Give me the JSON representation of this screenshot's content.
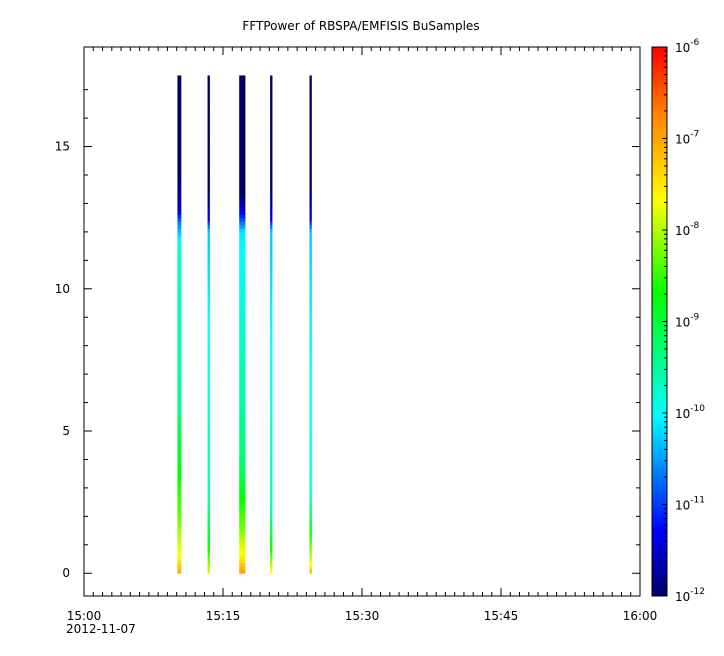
{
  "chart_data": {
    "type": "heatmap",
    "title": "FFTPower of RBSPA/EMFISIS  BuSamples",
    "xlabel": "",
    "ylabel": "",
    "x_axis": {
      "type": "time",
      "range": [
        "15:00",
        "16:00"
      ],
      "ticks": [
        "15:00",
        "15:15",
        "15:30",
        "15:45",
        "16:00"
      ],
      "first_tick_date": "2012-11-07",
      "minor_tick_minutes": 1
    },
    "y_axis": {
      "range": [
        -0.8,
        18.5
      ],
      "ticks": [
        "0",
        "5",
        "10",
        "15"
      ]
    },
    "colorbar": {
      "scale": "log",
      "range": [
        1e-12,
        1e-06
      ],
      "ticks": [
        {
          "base": "10",
          "exp": "-12"
        },
        {
          "base": "10",
          "exp": "-11"
        },
        {
          "base": "10",
          "exp": "-10"
        },
        {
          "base": "10",
          "exp": "-9"
        },
        {
          "base": "10",
          "exp": "-8"
        },
        {
          "base": "10",
          "exp": "-7"
        },
        {
          "base": "10",
          "exp": "-6"
        }
      ]
    },
    "strips": [
      {
        "time_start": "15:10:05",
        "time_end": "15:10:30",
        "freq_max": 17.5,
        "profile": [
          [
            0,
            -7.0
          ],
          [
            0.5,
            -7.6
          ],
          [
            2.0,
            -8.3
          ],
          [
            6.0,
            -9.4
          ],
          [
            11.5,
            -9.8
          ],
          [
            12.3,
            -10.6
          ],
          [
            12.8,
            -11.5
          ],
          [
            14.0,
            -12.0
          ],
          [
            17.5,
            -12.0
          ]
        ]
      },
      {
        "time_start": "15:13:20",
        "time_end": "15:13:35",
        "freq_max": 17.5,
        "profile": [
          [
            0,
            -7.8
          ],
          [
            0.8,
            -8.6
          ],
          [
            2.5,
            -9.5
          ],
          [
            12.0,
            -10.3
          ],
          [
            12.5,
            -11.4
          ],
          [
            13.5,
            -12.0
          ],
          [
            17.5,
            -12.0
          ]
        ]
      },
      {
        "time_start": "15:16:45",
        "time_end": "15:17:25",
        "freq_max": 17.5,
        "profile": [
          [
            0,
            -6.9
          ],
          [
            0.5,
            -7.5
          ],
          [
            1.5,
            -8.2
          ],
          [
            4.0,
            -9.3
          ],
          [
            12.0,
            -10.1
          ],
          [
            12.6,
            -11.2
          ],
          [
            13.3,
            -12.0
          ],
          [
            17.5,
            -12.0
          ]
        ]
      },
      {
        "time_start": "15:20:05",
        "time_end": "15:20:20",
        "freq_max": 17.5,
        "profile": [
          [
            0,
            -7.6
          ],
          [
            0.8,
            -8.6
          ],
          [
            2.2,
            -9.6
          ],
          [
            12.0,
            -10.3
          ],
          [
            12.5,
            -11.4
          ],
          [
            13.5,
            -12.0
          ],
          [
            17.5,
            -12.0
          ]
        ]
      },
      {
        "time_start": "15:24:20",
        "time_end": "15:24:35",
        "freq_max": 17.5,
        "profile": [
          [
            0,
            -7.0
          ],
          [
            0.4,
            -7.8
          ],
          [
            1.5,
            -8.8
          ],
          [
            3.0,
            -9.8
          ],
          [
            12.0,
            -10.3
          ],
          [
            12.5,
            -11.4
          ],
          [
            13.5,
            -12.0
          ],
          [
            17.5,
            -12.0
          ]
        ]
      }
    ]
  }
}
